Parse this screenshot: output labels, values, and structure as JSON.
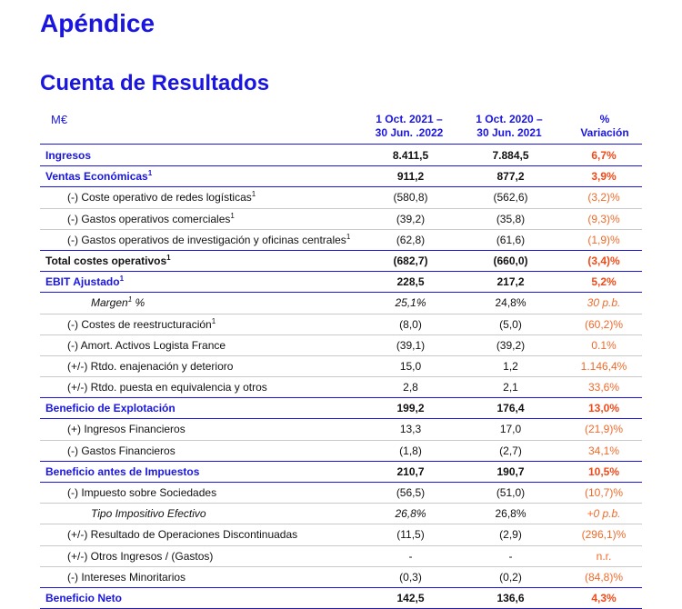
{
  "title": "Apéndice",
  "subtitle": "Cuenta de Resultados",
  "header": {
    "unit": "M€",
    "col1_line1": "1 Oct. 2021 –",
    "col1_line2": "30 Jun. .2022",
    "col2_line1": "1 Oct. 2020 –",
    "col2_line2": "30 Jun. 2021",
    "col3_line1": "%",
    "col3_line2": "Variación"
  },
  "rows": [
    {
      "label": "Ingresos",
      "sup": "",
      "v1": "8.411,5",
      "v2": "7.884,5",
      "v3": "6,7%",
      "type": "sec"
    },
    {
      "label": "Ventas Económicas",
      "sup": "1",
      "v1": "911,2",
      "v2": "877,2",
      "v3": "3,9%",
      "type": "sec"
    },
    {
      "label": "(-) Coste operativo de redes logísticas",
      "sup": "1",
      "v1": "(580,8)",
      "v2": "(562,6)",
      "v3": "(3,2)%",
      "type": "ind"
    },
    {
      "label": "(-) Gastos operativos comerciales",
      "sup": "1",
      "v1": "(39,2)",
      "v2": "(35,8)",
      "v3": "(9,3)%",
      "type": "ind"
    },
    {
      "label": "(-) Gastos operativos de investigación y oficinas centrales",
      "sup": "1",
      "v1": "(62,8)",
      "v2": "(61,6)",
      "v3": "(1,9)%",
      "type": "ind"
    },
    {
      "label": "Total costes operativos",
      "sup": "1",
      "v1": "(682,7)",
      "v2": "(660,0)",
      "v3": "(3,4)%",
      "type": "tot"
    },
    {
      "label": "EBIT Ajustado",
      "sup": "1",
      "v1": "228,5",
      "v2": "217,2",
      "v3": "5,2%",
      "type": "sec"
    },
    {
      "label": "Margen",
      "sup": "1",
      "suffix": " %",
      "v1": "25,1%",
      "v2": "24,8%",
      "v3": "30 p.b.",
      "type": "ind2"
    },
    {
      "label": "(-) Costes de reestructuración",
      "sup": "1",
      "v1": "(8,0)",
      "v2": "(5,0)",
      "v3": "(60,2)%",
      "type": "ind"
    },
    {
      "label": "(-) Amort. Activos Logista France",
      "sup": "",
      "v1": "(39,1)",
      "v2": "(39,2)",
      "v3": "0.1%",
      "type": "ind"
    },
    {
      "label": "(+/-) Rtdo. enajenación y deterioro",
      "sup": "",
      "v1": "15,0",
      "v2": "1,2",
      "v3": "1.146,4%",
      "type": "ind"
    },
    {
      "label": "(+/-) Rtdo. puesta en equivalencia y otros",
      "sup": "",
      "v1": "2,8",
      "v2": "2,1",
      "v3": "33,6%",
      "type": "ind"
    },
    {
      "label": "Beneficio de Explotación",
      "sup": "",
      "v1": "199,2",
      "v2": "176,4",
      "v3": "13,0%",
      "type": "sec"
    },
    {
      "label": "(+) Ingresos Financieros",
      "sup": "",
      "v1": "13,3",
      "v2": "17,0",
      "v3": "(21,9)%",
      "type": "ind"
    },
    {
      "label": "(-) Gastos Financieros",
      "sup": "",
      "v1": "(1,8)",
      "v2": "(2,7)",
      "v3": "34,1%",
      "type": "ind"
    },
    {
      "label": "Beneficio antes de Impuestos",
      "sup": "",
      "v1": "210,7",
      "v2": "190,7",
      "v3": "10,5%",
      "type": "sec"
    },
    {
      "label": "(-) Impuesto sobre Sociedades",
      "sup": "",
      "v1": "(56,5)",
      "v2": "(51,0)",
      "v3": "(10,7)%",
      "type": "ind"
    },
    {
      "label": "Tipo Impositivo Efectivo",
      "sup": "",
      "v1": "26,8%",
      "v2": "26,8%",
      "v3": "+0 p.b.",
      "type": "ind2"
    },
    {
      "label": "(+/-) Resultado de Operaciones Discontinuadas",
      "sup": "",
      "v1": "(11,5)",
      "v2": "(2,9)",
      "v3": "(296,1)%",
      "type": "ind"
    },
    {
      "label": "(+/-) Otros Ingresos / (Gastos)",
      "sup": "",
      "v1": "-",
      "v2": "-",
      "v3": "n.r.",
      "type": "ind"
    },
    {
      "label": "(-) Intereses Minoritarios",
      "sup": "",
      "v1": "(0,3)",
      "v2": "(0,2)",
      "v3": "(84,8)%",
      "type": "ind"
    },
    {
      "label": "Beneficio Neto",
      "sup": "",
      "v1": "142,5",
      "v2": "136,6",
      "v3": "4,3%",
      "type": "sec"
    }
  ]
}
